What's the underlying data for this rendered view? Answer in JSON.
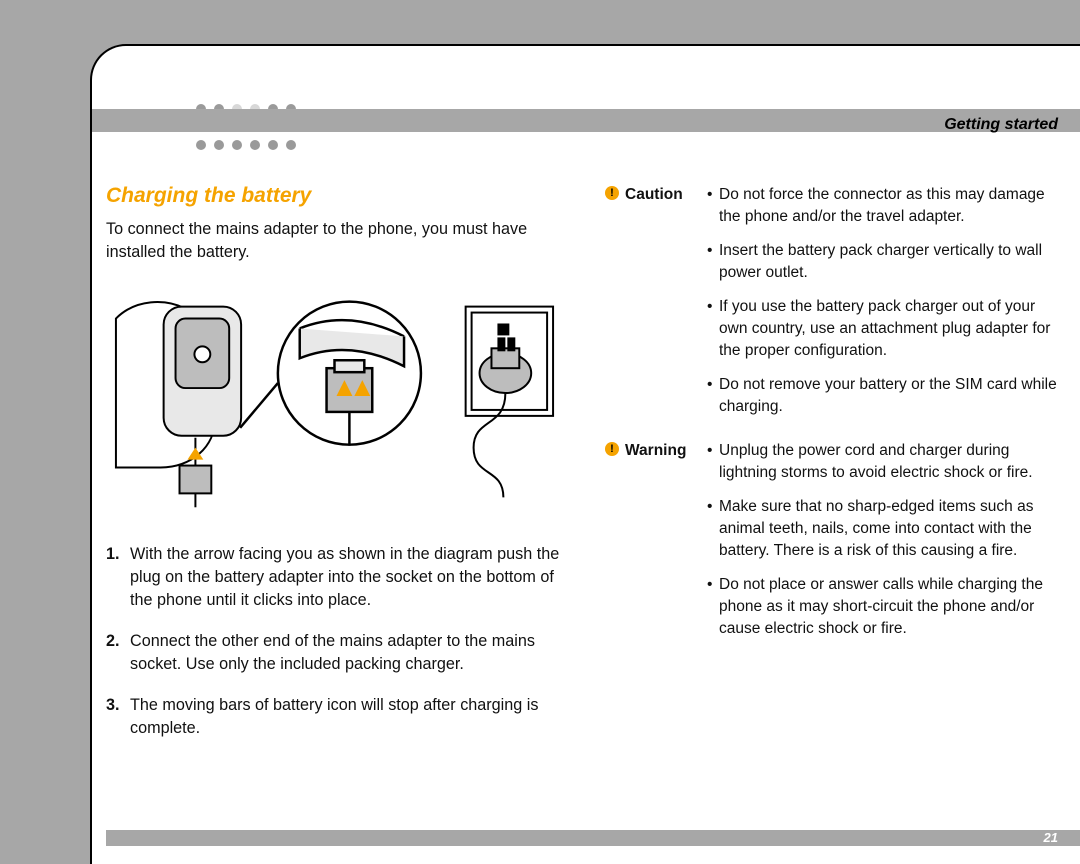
{
  "header": {
    "section_label": "Getting started",
    "dot_colors": [
      [
        "#9a9a9a",
        "#9a9a9a",
        "#d8d8d8",
        "#d8d8d8",
        "#9a9a9a",
        "#9a9a9a"
      ],
      [
        "#9a9a9a",
        "#d8d8d8",
        "#d8d8d8",
        "#d8d8d8",
        "#d8d8d8",
        "#9a9a9a"
      ],
      [
        "#9a9a9a",
        "#9a9a9a",
        "#9a9a9a",
        "#9a9a9a",
        "#9a9a9a",
        "#9a9a9a"
      ]
    ],
    "band_color": "#a7a7a7"
  },
  "left": {
    "title": "Charging the battery",
    "intro": "To connect the mains adapter to the phone, you must have installed the battery.",
    "steps": [
      "With the arrow facing you as shown in the diagram push the plug on the battery adapter into the socket on the bottom of the phone until it clicks into place.",
      "Connect the other end of the mains adapter to the mains socket. Use only the included packing charger.",
      "The moving bars of battery icon will stop after charging is complete."
    ],
    "illustration": {
      "stroke": "#000000",
      "accent": "#f5a300",
      "fill_light": "#e8e8e8",
      "fill_mid": "#bdbdbd"
    }
  },
  "right": {
    "caution": {
      "label": "Caution",
      "icon_glyph": "!",
      "icon_color": "#f5a300",
      "items": [
        "Do not force the connector as this may damage the phone and/or the travel adapter.",
        "Insert the battery pack charger vertically to wall power outlet.",
        "If you use the battery pack charger out of your own country, use an attachment plug adapter for the proper configuration.",
        "Do not remove your battery or the SIM card while charging."
      ]
    },
    "warning": {
      "label": "Warning",
      "icon_glyph": "!",
      "icon_color": "#f5a300",
      "items": [
        "Unplug the power cord and charger during lightning storms to avoid electric shock or fire.",
        "Make sure that no sharp-edged items such as animal teeth, nails, come into contact with the battery. There is a risk of this causing a fire.",
        "Do not place or answer calls while charging the phone as it may short-circuit the phone and/or cause electric shock or fire."
      ]
    }
  },
  "footer": {
    "page_number": "21",
    "bar_color": "#a7a7a7",
    "page_number_color": "#ffffff"
  },
  "colors": {
    "page_bg": "#a7a7a7",
    "sheet_bg": "#ffffff",
    "title_color": "#f5a300",
    "text_color": "#111111",
    "border_color": "#000000"
  },
  "typography": {
    "title_fontsize_pt": 16,
    "body_fontsize_pt": 12,
    "section_label_fontsize_pt": 12,
    "pagenum_fontsize_pt": 10
  }
}
